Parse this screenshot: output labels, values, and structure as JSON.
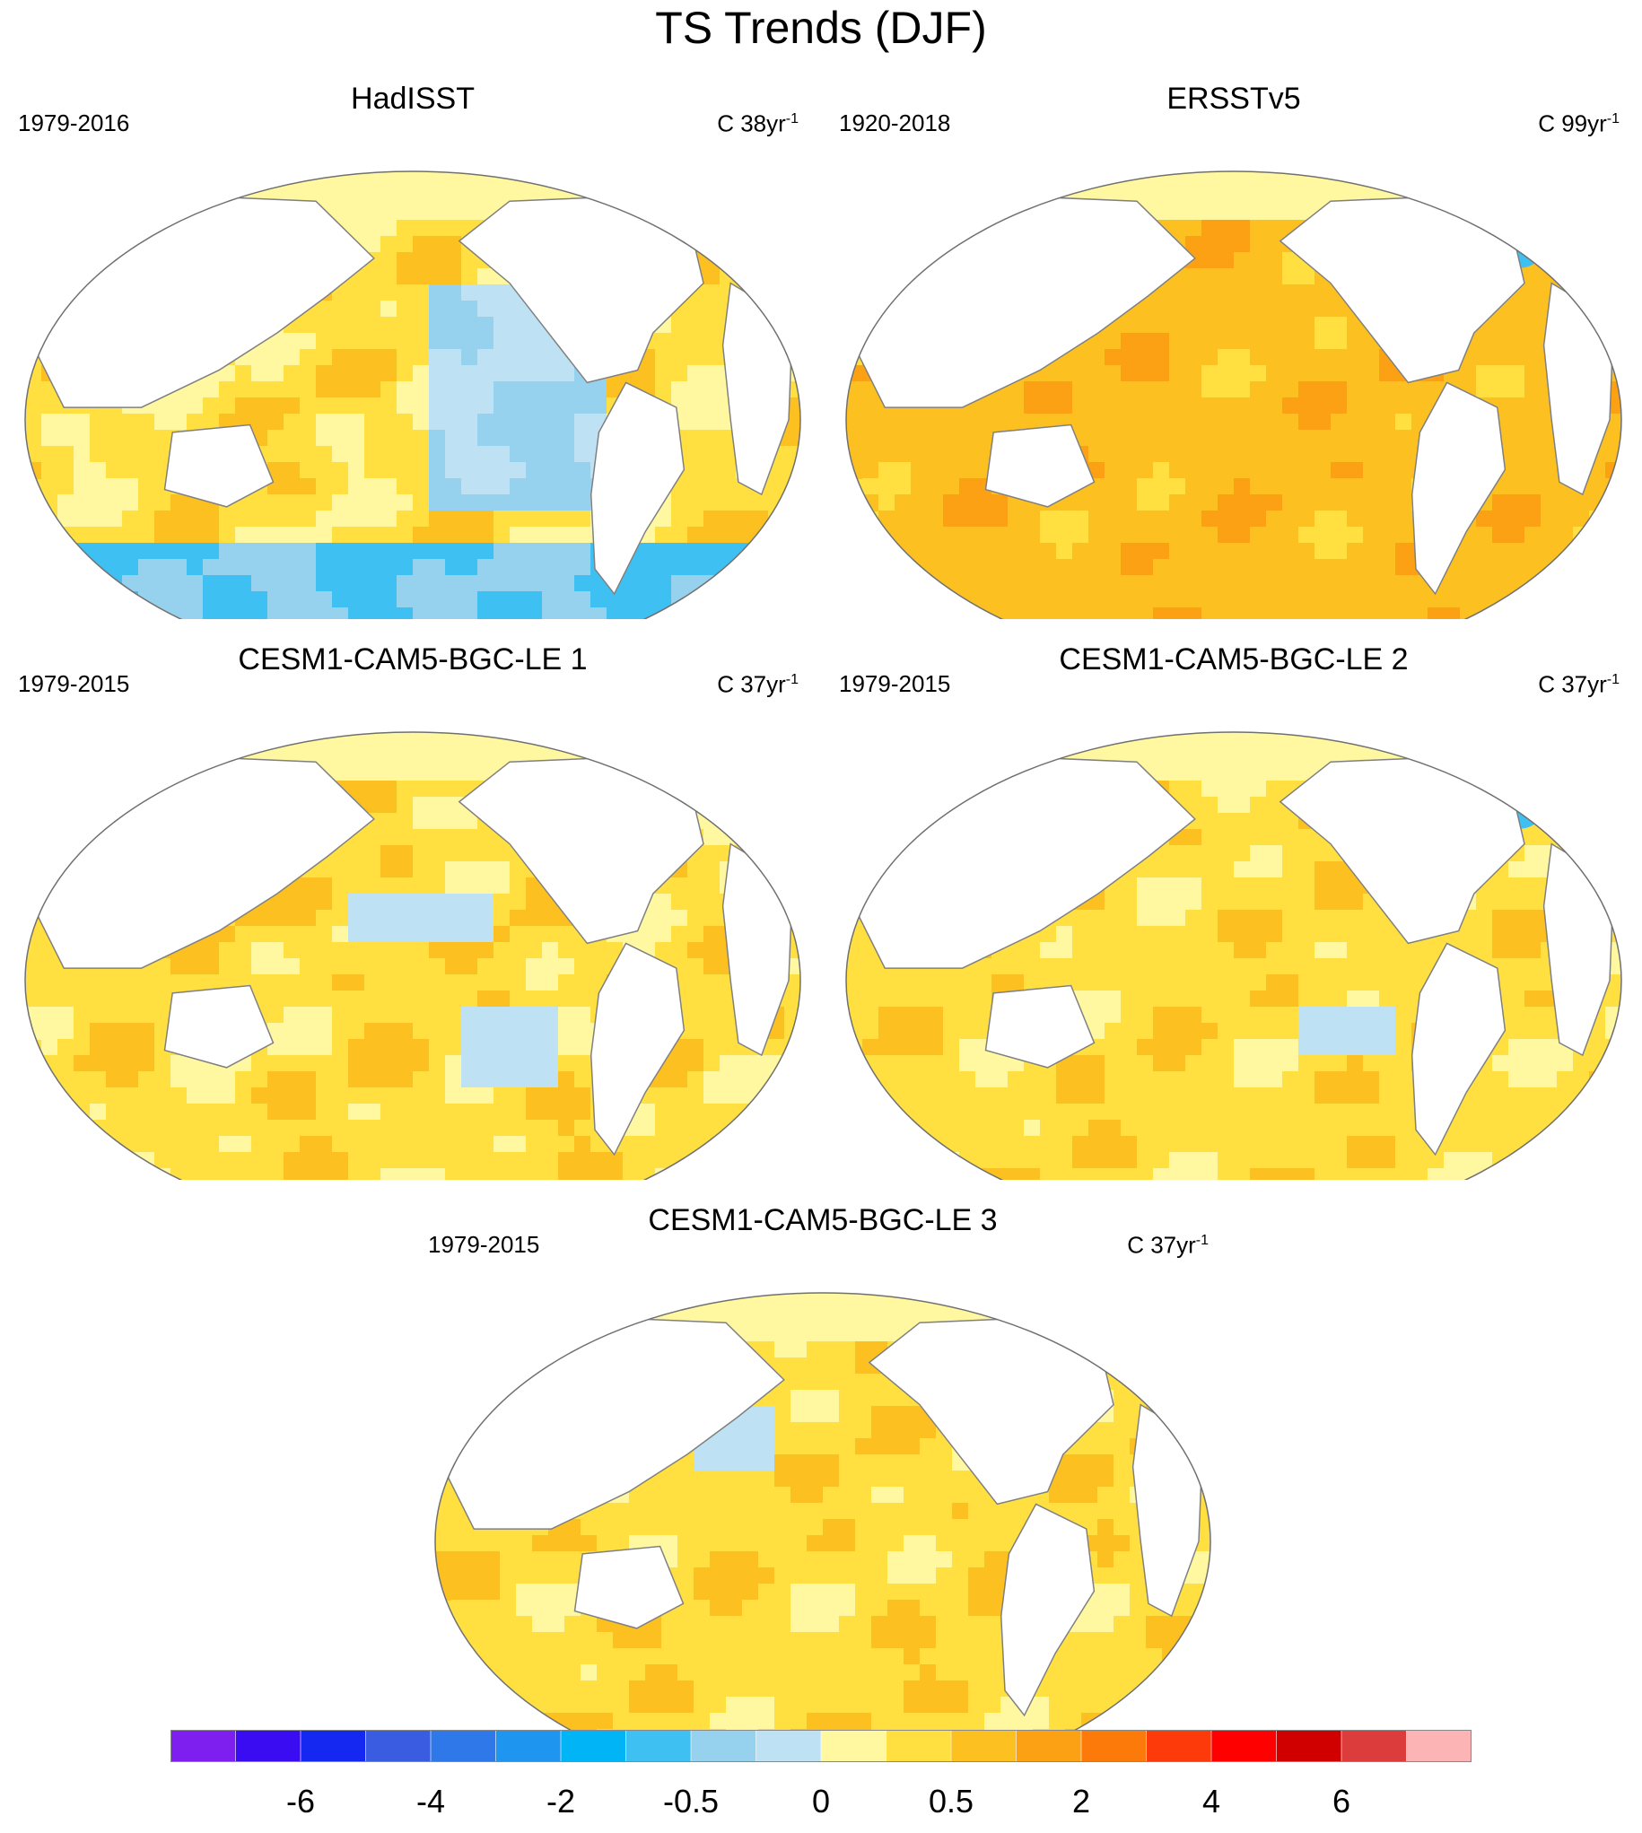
{
  "title": "TS Trends (DJF)",
  "panels": [
    {
      "title": "HadISST",
      "left": "1979-2016",
      "unit": "C 38yr",
      "sup": "-1",
      "pattern": "obs_cool"
    },
    {
      "title": "ERSSTv5",
      "left": "1920-2018",
      "unit": "C 99yr",
      "sup": "-1",
      "pattern": "warm_uniform"
    },
    {
      "title": "CESM1-CAM5-BGC-LE 1",
      "left": "1979-2015",
      "unit": "C 37yr",
      "sup": "-1",
      "pattern": "model1"
    },
    {
      "title": "CESM1-CAM5-BGC-LE 2",
      "left": "1979-2015",
      "unit": "C 37yr",
      "sup": "-1",
      "pattern": "model2"
    },
    {
      "title": "CESM1-CAM5-BGC-LE 3",
      "left": "1979-2015",
      "unit": "C 37yr",
      "sup": "-1",
      "pattern": "model3"
    }
  ],
  "colorbar": {
    "colors": [
      "#7f1fef",
      "#3a0cf2",
      "#1428f2",
      "#3a5ce0",
      "#2e78ea",
      "#1e96f0",
      "#00b4f5",
      "#3ec0f3",
      "#96d2ee",
      "#bee2f4",
      "#fff8a0",
      "#ffe040",
      "#fcc020",
      "#fca014",
      "#fc7a0a",
      "#fc3a0a",
      "#ff0000",
      "#d00000",
      "#dc3c3c",
      "#fcb4b4"
    ],
    "tick_labels": [
      "-6",
      "-4",
      "-2",
      "-0.5",
      "0",
      "0.5",
      "2",
      "4",
      "6"
    ],
    "tick_boundaries": [
      2,
      4,
      6,
      8,
      10,
      12,
      14,
      16,
      18
    ]
  }
}
